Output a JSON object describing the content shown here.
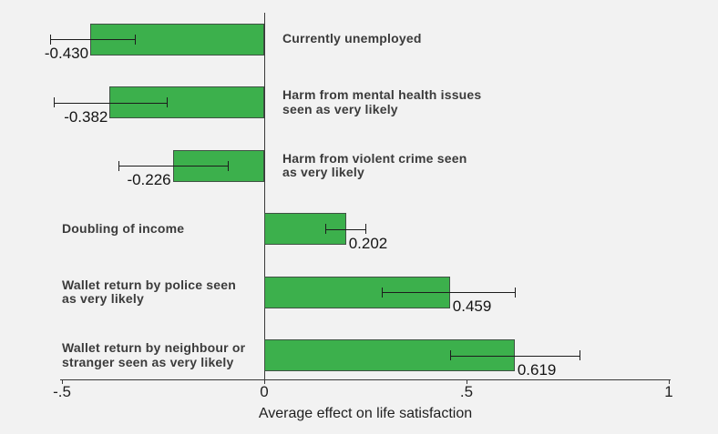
{
  "chart_data": {
    "type": "bar",
    "orientation": "horizontal",
    "title": "",
    "xlabel": "Average effect on life satisfaction",
    "xlim": [
      -0.5,
      1
    ],
    "grid": false,
    "legend": null,
    "xticks": [
      {
        "value": -0.5,
        "label": "-.5"
      },
      {
        "value": 0,
        "label": "0"
      },
      {
        "value": 0.5,
        "label": ".5"
      },
      {
        "value": 1,
        "label": "1"
      }
    ],
    "bars": [
      {
        "category_lines": [
          "Currently unemployed"
        ],
        "value": -0.43,
        "value_label": "-0.430",
        "ci": [
          -0.53,
          -0.32
        ]
      },
      {
        "category_lines": [
          "Harm from mental health issues",
          "seen as very likely"
        ],
        "value": -0.382,
        "value_label": "-0.382",
        "ci": [
          -0.52,
          -0.24
        ]
      },
      {
        "category_lines": [
          "Harm from violent crime seen",
          "as very likely"
        ],
        "value": -0.226,
        "value_label": "-0.226",
        "ci": [
          -0.36,
          -0.09
        ]
      },
      {
        "category_lines": [
          "Doubling of income"
        ],
        "value": 0.202,
        "value_label": "0.202",
        "ci": [
          0.15,
          0.25
        ]
      },
      {
        "category_lines": [
          "Wallet return by police seen",
          "as very likely"
        ],
        "value": 0.459,
        "value_label": "0.459",
        "ci": [
          0.29,
          0.62
        ]
      },
      {
        "category_lines": [
          "Wallet return by neighbour or",
          "stranger seen as very likely"
        ],
        "value": 0.619,
        "value_label": "0.619",
        "ci": [
          0.46,
          0.78
        ]
      }
    ],
    "colors": {
      "background": "#f2f2f2",
      "bar_fill": "#3cb04c",
      "bar_border": "#3f5243",
      "axis": "#3a3a3a",
      "error_bar": "#1c1c1c",
      "category_text": "#3b3b3b",
      "value_text": "#141414"
    }
  }
}
